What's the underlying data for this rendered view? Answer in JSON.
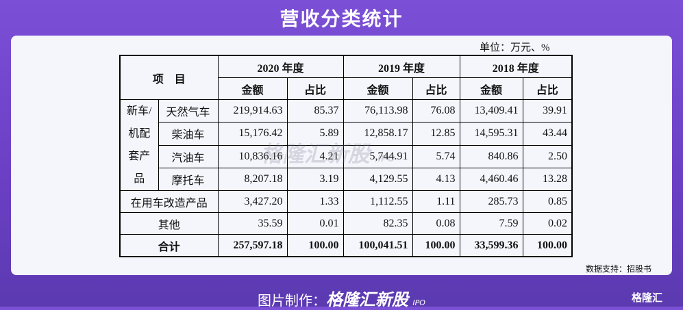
{
  "header": {
    "title": "营收分类统计",
    "unit": "单位：万元、%"
  },
  "table": {
    "top_left": "项　目",
    "years": [
      "2020 年度",
      "2019 年度",
      "2018 年度"
    ],
    "subheaders": [
      "金额",
      "占比",
      "金额",
      "占比",
      "金额",
      "占比"
    ],
    "group_label": [
      "新车/",
      "机配",
      "套产",
      "品"
    ],
    "rows": [
      {
        "label": "天然气车",
        "cells": [
          "219,914.63",
          "85.37",
          "76,113.98",
          "76.08",
          "13,409.41",
          "39.91"
        ]
      },
      {
        "label": "柴油车",
        "cells": [
          "15,176.42",
          "5.89",
          "12,858.17",
          "12.85",
          "14,595.31",
          "43.44"
        ]
      },
      {
        "label": "汽油车",
        "cells": [
          "10,836.16",
          "4.21",
          "5,744.91",
          "5.74",
          "840.86",
          "2.50"
        ]
      },
      {
        "label": "摩托车",
        "cells": [
          "8,207.18",
          "3.19",
          "4,129.55",
          "4.13",
          "4,460.46",
          "13.28"
        ]
      },
      {
        "label": "在用车改造产品",
        "cells": [
          "3,427.20",
          "1.33",
          "1,112.55",
          "1.11",
          "285.73",
          "0.85"
        ]
      },
      {
        "label": "其他",
        "cells": [
          "35.59",
          "0.01",
          "82.35",
          "0.08",
          "7.59",
          "0.02"
        ]
      },
      {
        "label": "合计",
        "cells": [
          "257,597.18",
          "100.00",
          "100,041.51",
          "100.00",
          "33,599.36",
          "100.00"
        ]
      }
    ]
  },
  "watermark": {
    "brand": "格隆汇新股",
    "ipo": "IPO"
  },
  "footer": {
    "source": "数据支持：招股书",
    "credit_label": "图片制作：",
    "credit_brand": "格隆汇新股",
    "credit_ipo": "IPO",
    "logo": "格隆汇"
  }
}
